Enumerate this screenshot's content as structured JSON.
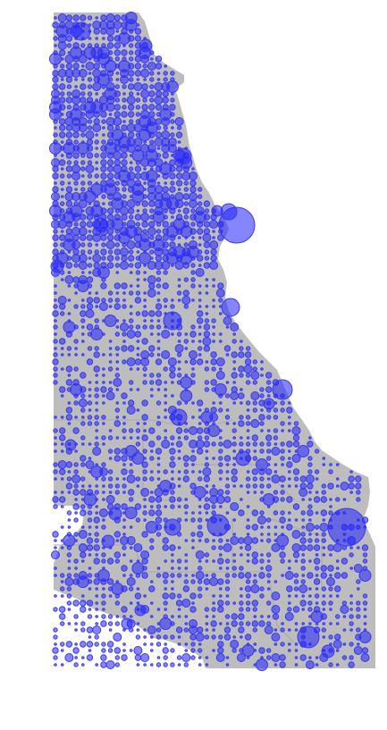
{
  "map": {
    "land_color": "#bdbdbd",
    "marker_fill": "#2020ff",
    "marker_opacity": 0.55,
    "marker_stroke": "#3a3af0",
    "background": "#ffffff",
    "marker_levels": [
      {
        "level": 1,
        "label": ""
      },
      {
        "level": 2,
        "label": ""
      },
      {
        "level": 3,
        "label": ""
      },
      {
        "level": 4,
        "label": ""
      },
      {
        "level": 5,
        "label": ""
      },
      {
        "level": 6,
        "label": ""
      }
    ]
  }
}
